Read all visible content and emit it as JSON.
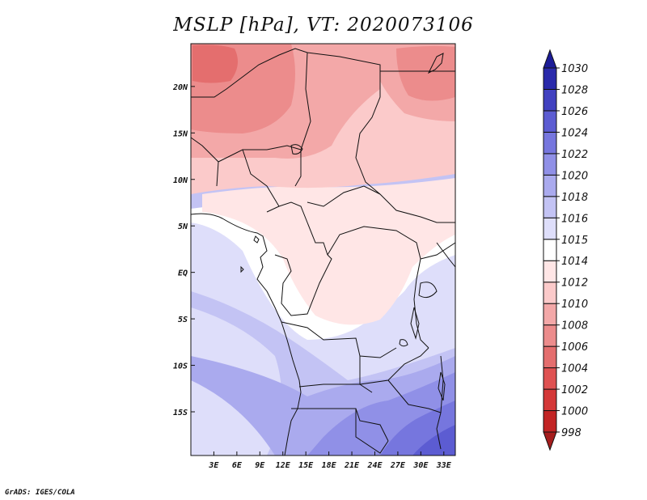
{
  "title": "MSLP [hPa], VT: 2020073106",
  "credit": "GrADS: IGES/COLA",
  "map": {
    "projection": "latlon",
    "lon_range": [
      0,
      34.5
    ],
    "lat_range": [
      -19.7,
      24.6
    ],
    "lon_ticks": [
      {
        "value": 3,
        "label": "3E"
      },
      {
        "value": 6,
        "label": "6E"
      },
      {
        "value": 9,
        "label": "9E"
      },
      {
        "value": 12,
        "label": "12E"
      },
      {
        "value": 15,
        "label": "15E"
      },
      {
        "value": 18,
        "label": "18E"
      },
      {
        "value": 21,
        "label": "21E"
      },
      {
        "value": 24,
        "label": "24E"
      },
      {
        "value": 27,
        "label": "27E"
      },
      {
        "value": 30,
        "label": "30E"
      },
      {
        "value": 33,
        "label": "33E"
      }
    ],
    "lat_ticks": [
      {
        "value": 20,
        "label": "20N"
      },
      {
        "value": 15,
        "label": "15N"
      },
      {
        "value": 10,
        "label": "10N"
      },
      {
        "value": 5,
        "label": "5N"
      },
      {
        "value": 0,
        "label": "EQ"
      },
      {
        "value": -5,
        "label": "5S"
      },
      {
        "value": -10,
        "label": "10S"
      },
      {
        "value": -15,
        "label": "15S"
      }
    ]
  },
  "colorbar": {
    "levels": [
      {
        "label": "998",
        "color": "#a51d1d"
      },
      {
        "label": "1000",
        "color": "#c22424"
      },
      {
        "label": "1002",
        "color": "#d43838"
      },
      {
        "label": "1004",
        "color": "#df5252"
      },
      {
        "label": "1006",
        "color": "#e46e6e"
      },
      {
        "label": "1008",
        "color": "#ec8c8c"
      },
      {
        "label": "1010",
        "color": "#f3a8a8"
      },
      {
        "label": "1012",
        "color": "#fbcaca"
      },
      {
        "label": "1014",
        "color": "#ffe6e6"
      },
      {
        "label": "1015",
        "color": "#ffffff"
      },
      {
        "label": "1016",
        "color": "#dedefa"
      },
      {
        "label": "1018",
        "color": "#c3c3f4"
      },
      {
        "label": "1020",
        "color": "#aaaaee"
      },
      {
        "label": "1022",
        "color": "#9090e7"
      },
      {
        "label": "1024",
        "color": "#7676de"
      },
      {
        "label": "1026",
        "color": "#5c5cd2"
      },
      {
        "label": "1028",
        "color": "#4141c0"
      },
      {
        "label": "1030",
        "color": "#2a2aab"
      },
      {
        "label": "",
        "color": "#1c1c97"
      }
    ]
  }
}
